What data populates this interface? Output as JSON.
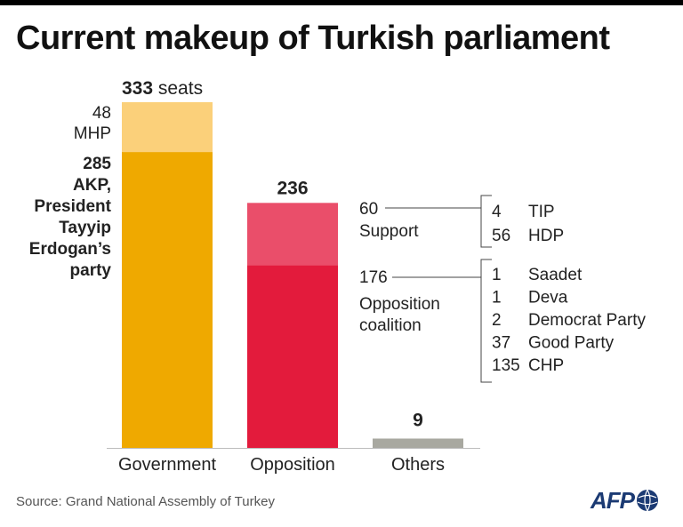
{
  "title": "Current makeup of Turkish parliament",
  "source": "Source: Grand National Assembly of Turkey",
  "logo": "AFP",
  "colors": {
    "akp": "#efa900",
    "mhp": "#fbd07a",
    "coalition": "#e31b3c",
    "support": "#ea4e6a",
    "others": "#a8a8a0",
    "baseline": "#bdbdbd",
    "bracket": "#444444",
    "logo": "#1b3a73"
  },
  "chart_data": {
    "type": "bar",
    "stacked": true,
    "categories": [
      "Government",
      "Opposition",
      "Others"
    ],
    "series": [
      {
        "name": "AKP",
        "values": [
          285,
          0,
          0
        ]
      },
      {
        "name": "MHP",
        "values": [
          48,
          0,
          0
        ]
      },
      {
        "name": "Opposition coalition",
        "values": [
          0,
          176,
          0
        ]
      },
      {
        "name": "Support",
        "values": [
          0,
          60,
          0
        ]
      },
      {
        "name": "Others",
        "values": [
          0,
          0,
          9
        ]
      }
    ],
    "ylim": [
      0,
      333
    ],
    "grid": false,
    "bar_labels": {
      "government_total_value": "333",
      "government_total_unit": "seats",
      "mhp_value": "48",
      "mhp_name": "MHP",
      "akp_value": "285",
      "akp_name_lines": [
        "AKP,",
        "President",
        "Tayyip",
        "Erdogan’s",
        "party"
      ],
      "opposition_total": "236",
      "others_total": "9"
    },
    "breakdown": {
      "support": {
        "value": "60",
        "label": "Support",
        "parties": [
          {
            "value": "4",
            "name": "TIP"
          },
          {
            "value": "56",
            "name": "HDP"
          }
        ]
      },
      "coalition": {
        "value": "176",
        "label_lines": [
          "Opposition",
          "coalition"
        ],
        "parties": [
          {
            "value": "1",
            "name": "Saadet"
          },
          {
            "value": "1",
            "name": "Deva"
          },
          {
            "value": "2",
            "name": "Democrat Party"
          },
          {
            "value": "37",
            "name": "Good Party"
          },
          {
            "value": "135",
            "name": "CHP"
          }
        ]
      }
    }
  }
}
